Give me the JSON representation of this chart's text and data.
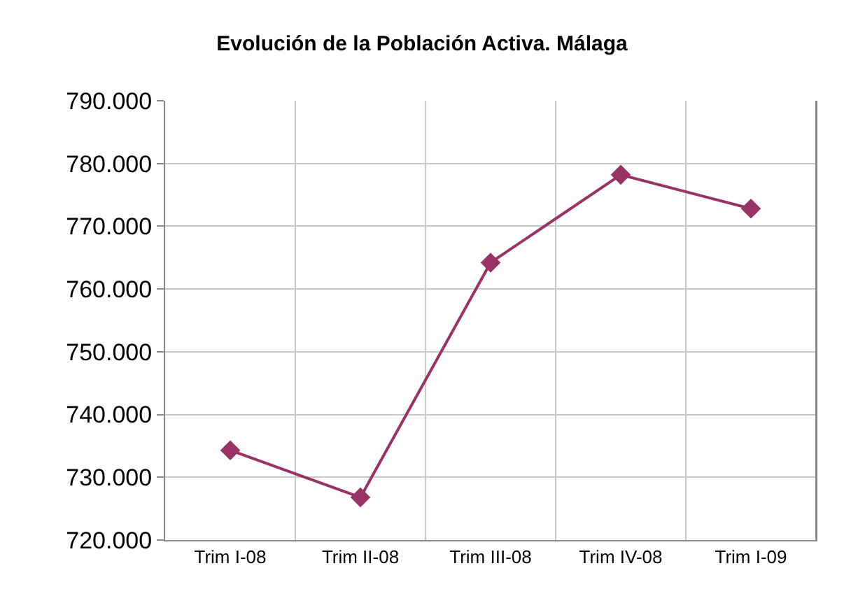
{
  "chart_data": {
    "type": "line",
    "title": "Evolución de la Población Activa. Málaga",
    "categories": [
      "Trim I-08",
      "Trim II-08",
      "Trim III-08",
      "Trim IV-08",
      "Trim I-09"
    ],
    "series": [
      {
        "color": "#993366",
        "values": [
          734300,
          726800,
          764200,
          778200,
          772800
        ]
      }
    ],
    "ylim": [
      720000,
      790000
    ],
    "yticks": [
      {
        "value": 720000,
        "label": "720.000"
      },
      {
        "value": 730000,
        "label": "730.000"
      },
      {
        "value": 740000,
        "label": "740.000"
      },
      {
        "value": 750000,
        "label": "750.000"
      },
      {
        "value": 760000,
        "label": "760.000"
      },
      {
        "value": 770000,
        "label": "770.000"
      },
      {
        "value": 780000,
        "label": "780.000"
      },
      {
        "value": 790000,
        "label": "790.000"
      }
    ],
    "grid": true,
    "marker": "diamond",
    "line_style": "solid"
  }
}
